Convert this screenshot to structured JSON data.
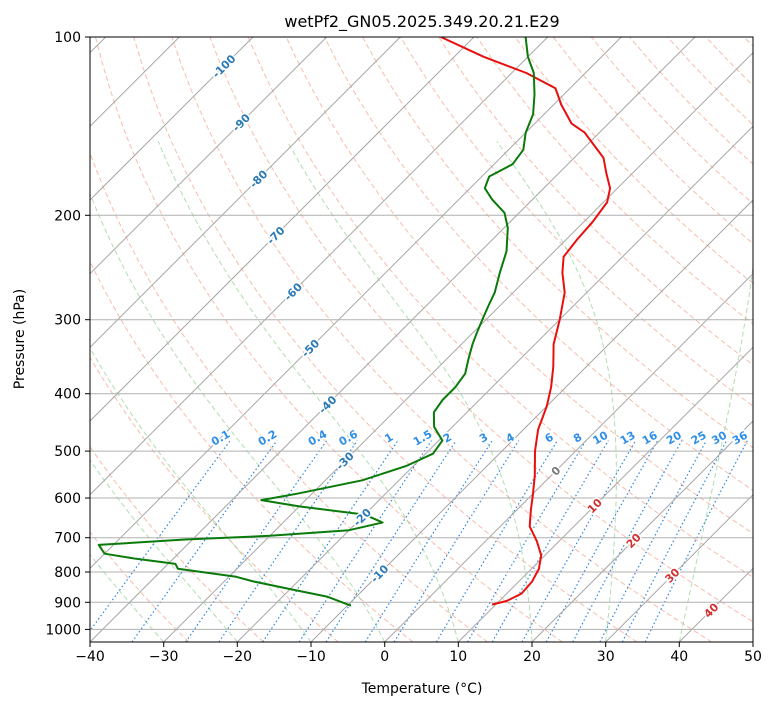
{
  "chart_data": {
    "type": "line",
    "title": "wetPf2_GN05.2025.349.20.21.E29",
    "xlabel": "Temperature (°C)",
    "ylabel": "Pressure (hPa)",
    "xlim": [
      -40,
      50
    ],
    "ylim": [
      1050,
      100
    ],
    "y_scale": "log",
    "skew": "skew-T",
    "grid": true,
    "x_ticks": [
      -40,
      -30,
      -20,
      -10,
      0,
      10,
      20,
      30,
      40,
      50
    ],
    "y_ticks": [
      100,
      200,
      300,
      400,
      500,
      600,
      700,
      800,
      900,
      1000
    ],
    "series": [
      {
        "role": "temperature",
        "color": "#e8100e",
        "points": [
          [
            908,
            9.5
          ],
          [
            895,
            11.0
          ],
          [
            870,
            12.0
          ],
          [
            830,
            11.8
          ],
          [
            790,
            11.0
          ],
          [
            750,
            9.5
          ],
          [
            710,
            7.0
          ],
          [
            670,
            4.0
          ],
          [
            630,
            2.0
          ],
          [
            590,
            0.0
          ],
          [
            550,
            -2.2
          ],
          [
            500,
            -5.5
          ],
          [
            460,
            -8.0
          ],
          [
            420,
            -10.0
          ],
          [
            390,
            -12.0
          ],
          [
            360,
            -14.5
          ],
          [
            330,
            -17.5
          ],
          [
            300,
            -20.0
          ],
          [
            270,
            -23.0
          ],
          [
            250,
            -26.0
          ],
          [
            235,
            -28.0
          ],
          [
            220,
            -28.5
          ],
          [
            205,
            -28.8
          ],
          [
            190,
            -29.5
          ],
          [
            180,
            -31.0
          ],
          [
            170,
            -33.5
          ],
          [
            160,
            -36.0
          ],
          [
            145,
            -42.0
          ],
          [
            140,
            -45.0
          ],
          [
            130,
            -49.0
          ],
          [
            122,
            -52.0
          ],
          [
            115,
            -58.0
          ],
          [
            108,
            -66.0
          ],
          [
            100,
            -74.5
          ]
        ]
      },
      {
        "role": "dewpoint",
        "color": "#0a7a0a",
        "points": [
          [
            912,
            -9.5
          ],
          [
            880,
            -14.0
          ],
          [
            855,
            -20.0
          ],
          [
            830,
            -26.0
          ],
          [
            815,
            -29.0
          ],
          [
            790,
            -38.0
          ],
          [
            775,
            -39.0
          ],
          [
            760,
            -45.0
          ],
          [
            745,
            -50.0
          ],
          [
            720,
            -52.0
          ],
          [
            705,
            -41.0
          ],
          [
            695,
            -30.0
          ],
          [
            680,
            -20.0
          ],
          [
            660,
            -16.5
          ],
          [
            640,
            -20.0
          ],
          [
            620,
            -30.0
          ],
          [
            605,
            -36.0
          ],
          [
            590,
            -32.0
          ],
          [
            560,
            -25.0
          ],
          [
            530,
            -21.0
          ],
          [
            505,
            -19.0
          ],
          [
            480,
            -19.5
          ],
          [
            455,
            -22.5
          ],
          [
            430,
            -24.5
          ],
          [
            410,
            -25.0
          ],
          [
            390,
            -25.0
          ],
          [
            370,
            -25.5
          ],
          [
            350,
            -27.0
          ],
          [
            330,
            -28.5
          ],
          [
            315,
            -29.5
          ],
          [
            300,
            -30.5
          ],
          [
            285,
            -31.5
          ],
          [
            270,
            -32.5
          ],
          [
            250,
            -34.5
          ],
          [
            230,
            -36.5
          ],
          [
            210,
            -39.5
          ],
          [
            198,
            -42.0
          ],
          [
            188,
            -45.5
          ],
          [
            180,
            -48.0
          ],
          [
            172,
            -49.0
          ],
          [
            164,
            -47.5
          ],
          [
            155,
            -48.0
          ],
          [
            145,
            -50.0
          ],
          [
            135,
            -51.5
          ],
          [
            125,
            -54.0
          ],
          [
            115,
            -57.0
          ],
          [
            108,
            -60.0
          ],
          [
            100,
            -63.0
          ]
        ]
      }
    ],
    "reference_lines": {
      "dry_adiabat_labels": [
        "-100",
        "-90",
        "-80",
        "-70",
        "-60",
        "-50",
        "-40",
        "-30",
        "-20",
        "-10"
      ],
      "mixing_ratio_labels": [
        "0.1",
        "0.2",
        "0.4",
        "0.6",
        "1",
        "1.5",
        "2",
        "3",
        "4",
        "6",
        "8",
        "10",
        "13",
        "16",
        "20",
        "25",
        "30",
        "36"
      ],
      "moist_adiabat_labels": [
        "0",
        "10",
        "20",
        "30",
        "40"
      ]
    }
  }
}
